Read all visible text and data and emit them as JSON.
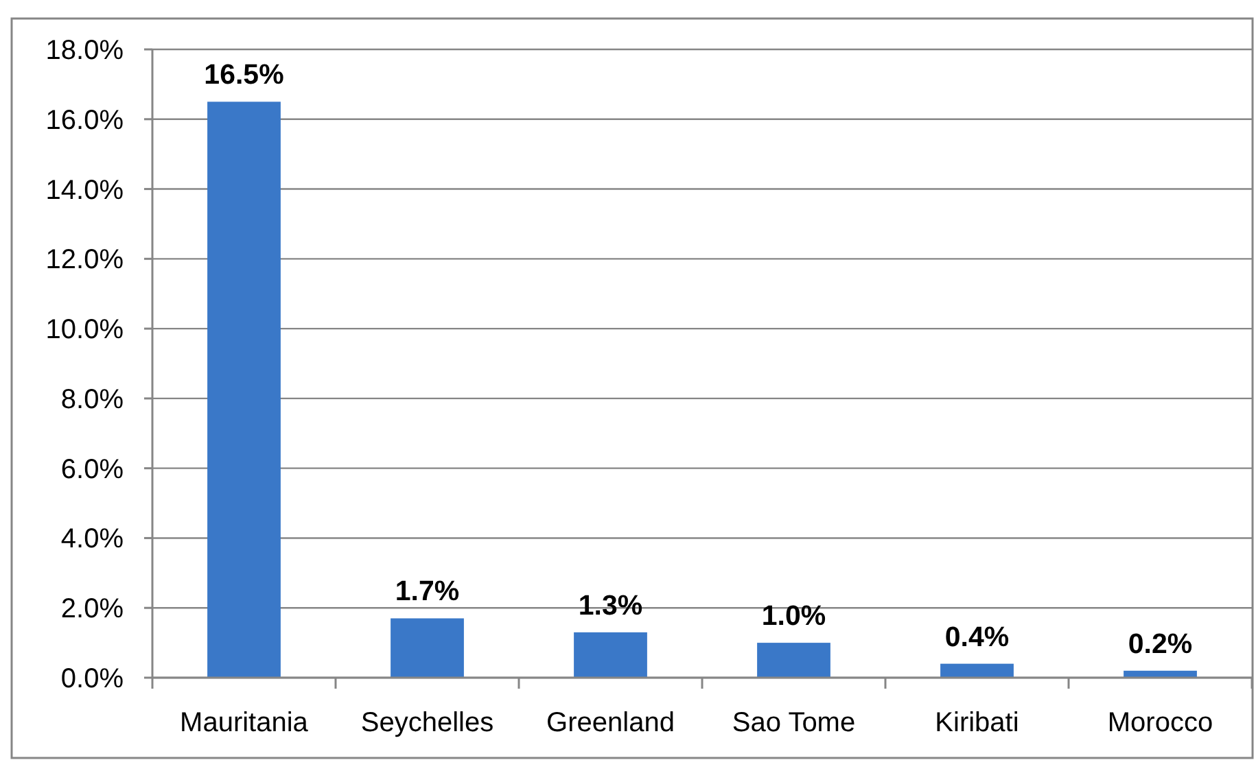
{
  "chart_data": {
    "type": "bar",
    "categories": [
      "Mauritania",
      "Seychelles",
      "Greenland",
      "Sao Tome",
      "Kiribati",
      "Morocco"
    ],
    "values": [
      16.5,
      1.7,
      1.3,
      1.0,
      0.4,
      0.2
    ],
    "value_labels": [
      "16.5%",
      "1.7%",
      "1.3%",
      "1.0%",
      "0.4%",
      "0.2%"
    ],
    "color": "#3a78c8",
    "ylim": [
      0,
      18
    ],
    "yticks": [
      {
        "value": 0,
        "label": "0.0%"
      },
      {
        "value": 2,
        "label": "2.0%"
      },
      {
        "value": 4,
        "label": "4.0%"
      },
      {
        "value": 6,
        "label": "6.0%"
      },
      {
        "value": 8,
        "label": "8.0%"
      },
      {
        "value": 10,
        "label": "10.0%"
      },
      {
        "value": 12,
        "label": "12.0%"
      },
      {
        "value": 14,
        "label": "14.0%"
      },
      {
        "value": 16,
        "label": "16.0%"
      },
      {
        "value": 18,
        "label": "18.0%"
      }
    ],
    "grid": "y"
  }
}
